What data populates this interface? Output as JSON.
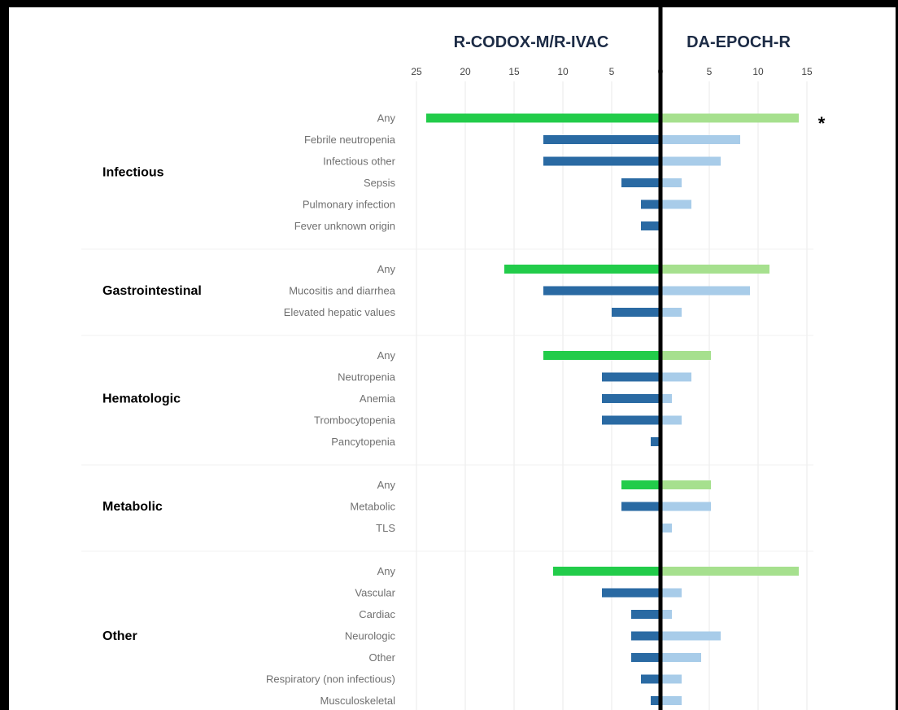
{
  "chart_data": {
    "type": "bar",
    "orientation": "horizontal-butterfly",
    "left_title": "R-CODOX-M/R-IVAC",
    "right_title": "DA-EPOCH-R",
    "left_ticks": [
      "25",
      "20",
      "15",
      "10",
      "5",
      "0"
    ],
    "right_ticks": [
      "0",
      "5",
      "10",
      "15"
    ],
    "left_max": 25,
    "right_max": 15,
    "significance_marker": "*",
    "colors": {
      "any_left": "#22cc4a",
      "any_right": "#a6e08e",
      "item_left": "#2a6aa3",
      "item_right": "#a8cce9",
      "axis": "#000000",
      "grid": "#e8e8e8"
    },
    "groups": [
      {
        "name": "Infectious",
        "rows": [
          {
            "label": "Any",
            "left": 24,
            "right": 14,
            "is_any": true,
            "marker": true
          },
          {
            "label": "Febrile neutropenia",
            "left": 12,
            "right": 8
          },
          {
            "label": "Infectious other",
            "left": 12,
            "right": 6
          },
          {
            "label": "Sepsis",
            "left": 4,
            "right": 2
          },
          {
            "label": "Pulmonary infection",
            "left": 2,
            "right": 3
          },
          {
            "label": "Fever unknown origin",
            "left": 2,
            "right": 0
          }
        ]
      },
      {
        "name": "Gastrointestinal",
        "rows": [
          {
            "label": "Any",
            "left": 16,
            "right": 11,
            "is_any": true
          },
          {
            "label": "Mucositis and diarrhea",
            "left": 12,
            "right": 9
          },
          {
            "label": "Elevated hepatic values",
            "left": 5,
            "right": 2
          }
        ]
      },
      {
        "name": "Hematologic",
        "rows": [
          {
            "label": "Any",
            "left": 12,
            "right": 5,
            "is_any": true
          },
          {
            "label": "Neutropenia",
            "left": 6,
            "right": 3
          },
          {
            "label": "Anemia",
            "left": 6,
            "right": 1
          },
          {
            "label": "Trombocytopenia",
            "left": 6,
            "right": 2
          },
          {
            "label": "Pancytopenia",
            "left": 1,
            "right": 0
          }
        ]
      },
      {
        "name": "Metabolic",
        "rows": [
          {
            "label": "Any",
            "left": 4,
            "right": 5,
            "is_any": true
          },
          {
            "label": "Metabolic",
            "left": 4,
            "right": 5
          },
          {
            "label": "TLS",
            "left": 0,
            "right": 1
          }
        ]
      },
      {
        "name": "Other",
        "rows": [
          {
            "label": "Any",
            "left": 11,
            "right": 14,
            "is_any": true
          },
          {
            "label": "Vascular",
            "left": 6,
            "right": 2
          },
          {
            "label": "Cardiac",
            "left": 3,
            "right": 1
          },
          {
            "label": "Neurologic",
            "left": 3,
            "right": 6
          },
          {
            "label": "Other",
            "left": 3,
            "right": 4
          },
          {
            "label": "Respiratory (non infectious)",
            "left": 2,
            "right": 2
          },
          {
            "label": "Musculoskeletal",
            "left": 1,
            "right": 2
          }
        ]
      }
    ]
  }
}
